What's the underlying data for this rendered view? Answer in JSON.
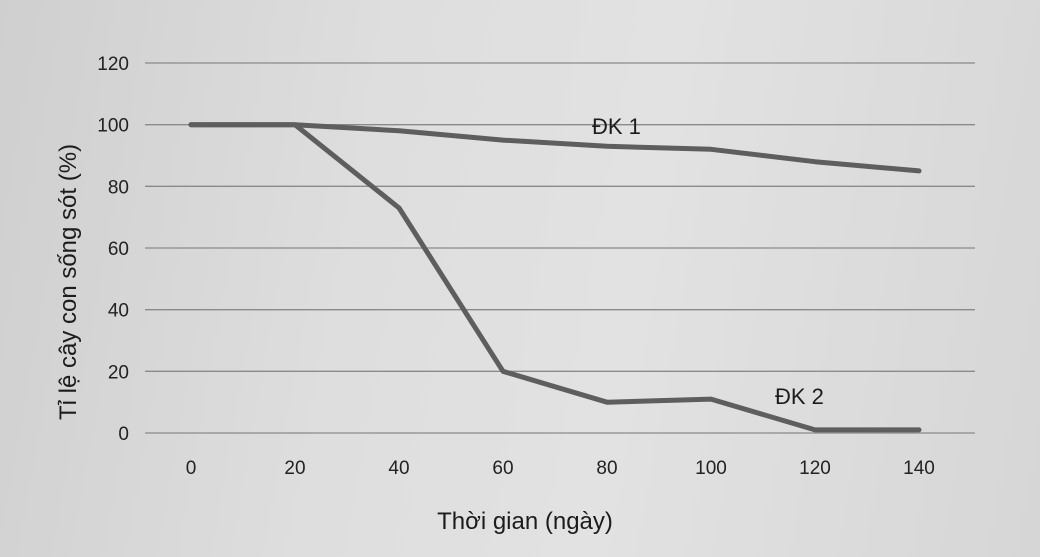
{
  "chart_data": {
    "type": "line",
    "xlabel": "Thời gian (ngày)",
    "ylabel": "Tỉ lệ cây con sống sót (%)",
    "xlim": [
      0,
      140
    ],
    "ylim": [
      0,
      120
    ],
    "x_ticks": [
      "0",
      "20",
      "40",
      "60",
      "80",
      "100",
      "120",
      "140"
    ],
    "y_ticks": [
      "0",
      "20",
      "40",
      "60",
      "80",
      "100",
      "120"
    ],
    "grid": "horizontal",
    "series": [
      {
        "name": "ĐK 1",
        "x": [
          0,
          20,
          40,
          60,
          80,
          100,
          120,
          140
        ],
        "y": [
          100,
          100,
          98,
          95,
          93,
          92,
          88,
          85
        ]
      },
      {
        "name": "ĐK 2",
        "x": [
          0,
          20,
          40,
          60,
          80,
          100,
          120,
          140
        ],
        "y": [
          100,
          100,
          73,
          20,
          10,
          11,
          1,
          1
        ]
      }
    ],
    "colors": {
      "line": "#5e5e5e",
      "grid": "#8a8a8a",
      "text": "#222222"
    }
  }
}
